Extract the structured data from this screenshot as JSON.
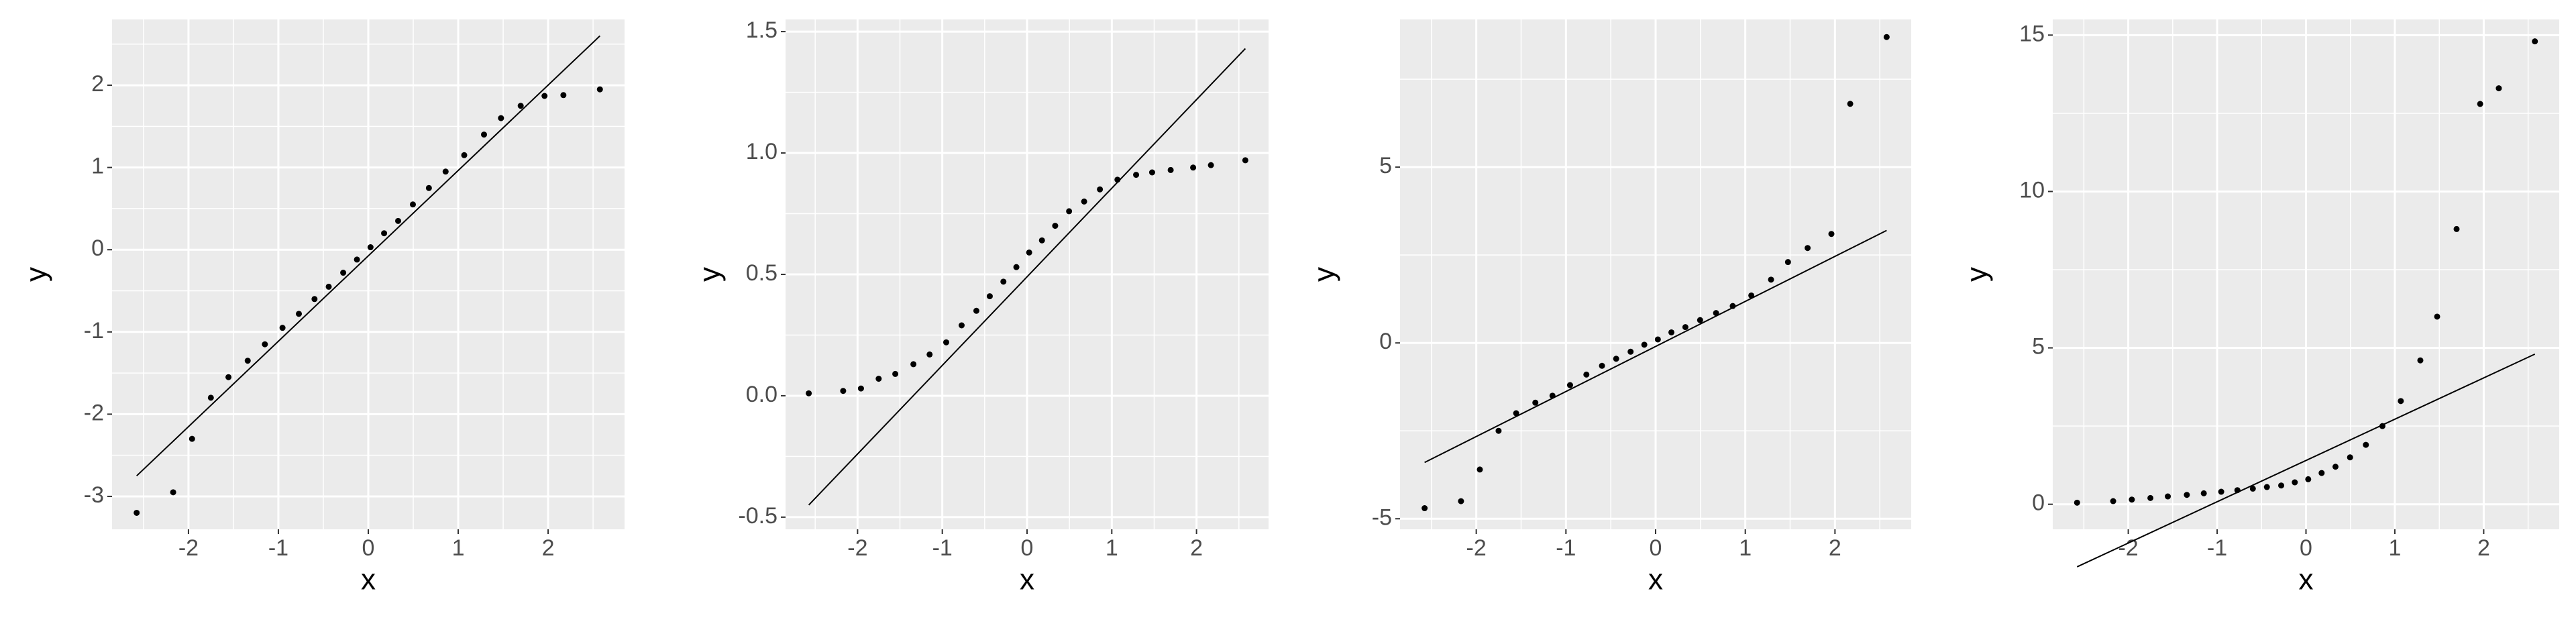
{
  "chart_data": [
    {
      "type": "scatter",
      "x_label": "x",
      "y_label": "y",
      "point_color": "#000000",
      "line_color": "#000000",
      "grid": true,
      "x": [
        -2.576,
        -2.17,
        -1.96,
        -1.751,
        -1.555,
        -1.341,
        -1.15,
        -0.954,
        -0.772,
        -0.598,
        -0.44,
        -0.279,
        -0.126,
        0.025,
        0.176,
        0.332,
        0.496,
        0.674,
        0.86,
        1.067,
        1.287,
        1.476,
        1.695,
        1.96,
        2.17,
        2.576
      ],
      "y": [
        -3.2,
        -2.95,
        -2.3,
        -1.8,
        -1.55,
        -1.35,
        -1.15,
        -0.95,
        -0.78,
        -0.6,
        -0.45,
        -0.28,
        -0.12,
        0.03,
        0.2,
        0.35,
        0.55,
        0.75,
        0.95,
        1.15,
        1.4,
        1.6,
        1.75,
        1.87,
        1.88,
        1.95
      ],
      "qq_line": {
        "x": [
          -2.576,
          2.576
        ],
        "y": [
          -2.75,
          2.6
        ]
      },
      "xlim": [
        -2.85,
        2.85
      ],
      "ylim": [
        -3.4,
        2.8
      ],
      "xticks": [
        -2,
        -1,
        0,
        1,
        2
      ],
      "yticks": [
        -3,
        -2,
        -1,
        0,
        1,
        2
      ]
    },
    {
      "type": "scatter",
      "x_label": "x",
      "y_label": "y",
      "point_color": "#000000",
      "line_color": "#000000",
      "grid": true,
      "x": [
        -2.576,
        -2.17,
        -1.96,
        -1.751,
        -1.555,
        -1.341,
        -1.15,
        -0.954,
        -0.772,
        -0.598,
        -0.44,
        -0.279,
        -0.126,
        0.025,
        0.176,
        0.332,
        0.496,
        0.674,
        0.86,
        1.067,
        1.287,
        1.476,
        1.695,
        1.96,
        2.17,
        2.576
      ],
      "y": [
        0.01,
        0.02,
        0.03,
        0.07,
        0.09,
        0.13,
        0.17,
        0.22,
        0.29,
        0.35,
        0.41,
        0.47,
        0.53,
        0.59,
        0.64,
        0.7,
        0.76,
        0.8,
        0.85,
        0.89,
        0.91,
        0.92,
        0.93,
        0.94,
        0.95,
        0.97
      ],
      "qq_line": {
        "x": [
          -2.576,
          2.576
        ],
        "y": [
          -0.45,
          1.43
        ]
      },
      "xlim": [
        -2.85,
        2.85
      ],
      "ylim": [
        -0.55,
        1.55
      ],
      "xticks": [
        -2,
        -1,
        0,
        1,
        2
      ],
      "yticks": [
        {
          "value": -0.5,
          "label": "-0.5"
        },
        {
          "value": 0,
          "label": "0.0"
        },
        {
          "value": 0.5,
          "label": "0.5"
        },
        {
          "value": 1,
          "label": "1.0"
        },
        {
          "value": 1.5,
          "label": "1.5"
        }
      ]
    },
    {
      "type": "scatter",
      "x_label": "x",
      "y_label": "y",
      "point_color": "#000000",
      "line_color": "#000000",
      "grid": true,
      "x": [
        -2.576,
        -2.17,
        -1.96,
        -1.751,
        -1.555,
        -1.341,
        -1.15,
        -0.954,
        -0.772,
        -0.598,
        -0.44,
        -0.279,
        -0.126,
        0.025,
        0.176,
        0.332,
        0.496,
        0.674,
        0.86,
        1.067,
        1.287,
        1.476,
        1.695,
        1.96,
        2.17,
        2.576
      ],
      "y": [
        -4.7,
        -4.5,
        -3.6,
        -2.5,
        -2.0,
        -1.7,
        -1.5,
        -1.2,
        -0.9,
        -0.65,
        -0.45,
        -0.25,
        -0.05,
        0.1,
        0.3,
        0.45,
        0.65,
        0.85,
        1.05,
        1.35,
        1.8,
        2.3,
        2.7,
        3.1,
        6.8,
        8.7
      ],
      "qq_line": {
        "x": [
          -2.576,
          2.576
        ],
        "y": [
          -3.4,
          3.2
        ]
      },
      "xlim": [
        -2.85,
        2.85
      ],
      "ylim": [
        -5.3,
        9.2
      ],
      "xticks": [
        -2,
        -1,
        0,
        1,
        2
      ],
      "yticks": [
        -5,
        0,
        5
      ]
    },
    {
      "type": "scatter",
      "x_label": "x",
      "y_label": "y",
      "point_color": "#000000",
      "line_color": "#000000",
      "grid": true,
      "x": [
        -2.576,
        -2.17,
        -1.96,
        -1.751,
        -1.555,
        -1.341,
        -1.15,
        -0.954,
        -0.772,
        -0.598,
        -0.44,
        -0.279,
        -0.126,
        0.025,
        0.176,
        0.332,
        0.496,
        0.674,
        0.86,
        1.067,
        1.287,
        1.476,
        1.695,
        1.96,
        2.17,
        2.576
      ],
      "y": [
        0.05,
        0.1,
        0.15,
        0.2,
        0.25,
        0.3,
        0.35,
        0.4,
        0.45,
        0.5,
        0.55,
        0.6,
        0.7,
        0.8,
        1.0,
        1.2,
        1.5,
        1.9,
        2.5,
        3.3,
        4.6,
        6.0,
        8.8,
        12.8,
        13.3,
        14.8
      ],
      "qq_line": {
        "x": [
          -2.576,
          2.576
        ],
        "y": [
          -2.0,
          4.8
        ]
      },
      "xlim": [
        -2.85,
        2.85
      ],
      "ylim": [
        -0.8,
        15.5
      ],
      "xticks": [
        -2,
        -1,
        0,
        1,
        2
      ],
      "yticks": [
        0,
        5,
        10,
        15
      ]
    }
  ]
}
